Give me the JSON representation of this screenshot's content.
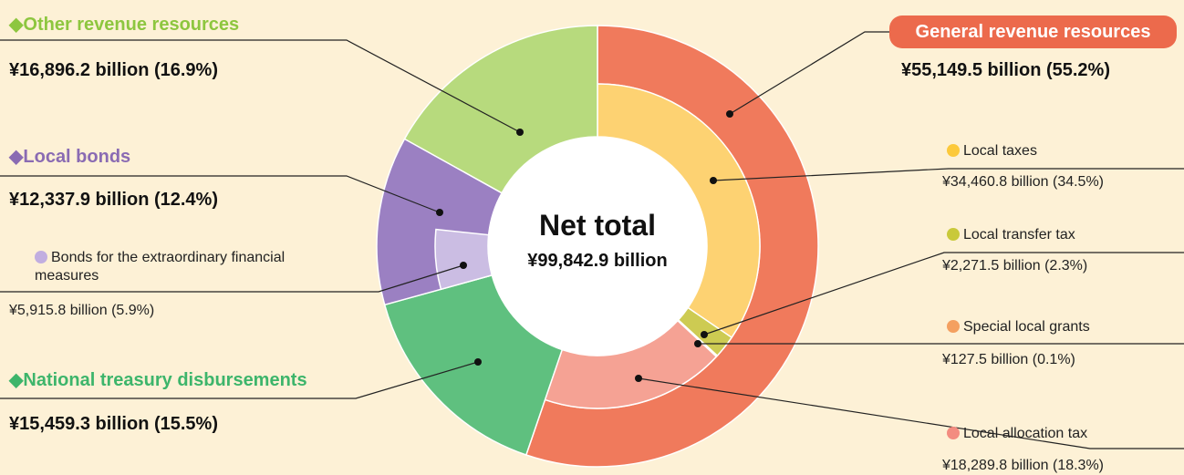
{
  "chart_data": {
    "type": "donut",
    "center_title": "Net total",
    "total": 99842.9,
    "total_label": "¥99,842.9 billion",
    "segments": [
      {
        "name": "General revenue resources",
        "value": 55149.5,
        "value_label": "¥55,149.5 billion (55.2%)",
        "color": "#f07a5c",
        "children": [
          {
            "name": "Local taxes",
            "value": 34460.8,
            "value_label": "¥34,460.8 billion (34.5%)",
            "color": "#fdd272"
          },
          {
            "name": "Local transfer tax",
            "value": 2271.5,
            "value_label": "¥2,271.5 billion (2.3%)",
            "color": "#cdcb52"
          },
          {
            "name": "Special local grants",
            "value": 127.5,
            "value_label": "¥127.5 billion (0.1%)",
            "color": "#f4a462"
          },
          {
            "name": "Local allocation tax",
            "value": 18289.8,
            "value_label": "¥18,289.8 billion (18.3%)",
            "color": "#f5a294"
          }
        ]
      },
      {
        "name": "◆National treasury disbursements",
        "value": 15459.3,
        "value_label": "¥15,459.3 billion (15.5%)",
        "color": "#5fc07f"
      },
      {
        "name": "◆Local bonds",
        "value": 12337.9,
        "value_label": "¥12,337.9 billion (12.4%)",
        "color": "#9b80c2",
        "children": [
          {
            "name": "Bonds for the extraordinary financial measures",
            "value": 5915.8,
            "value_label": "¥5,915.8 billion (5.9%)",
            "color": "#cbbde3"
          }
        ]
      },
      {
        "name": "◆Other revenue resources",
        "value": 16896.2,
        "value_label": "¥16,896.2 billion (16.9%)",
        "color": "#b7da7d"
      }
    ]
  }
}
